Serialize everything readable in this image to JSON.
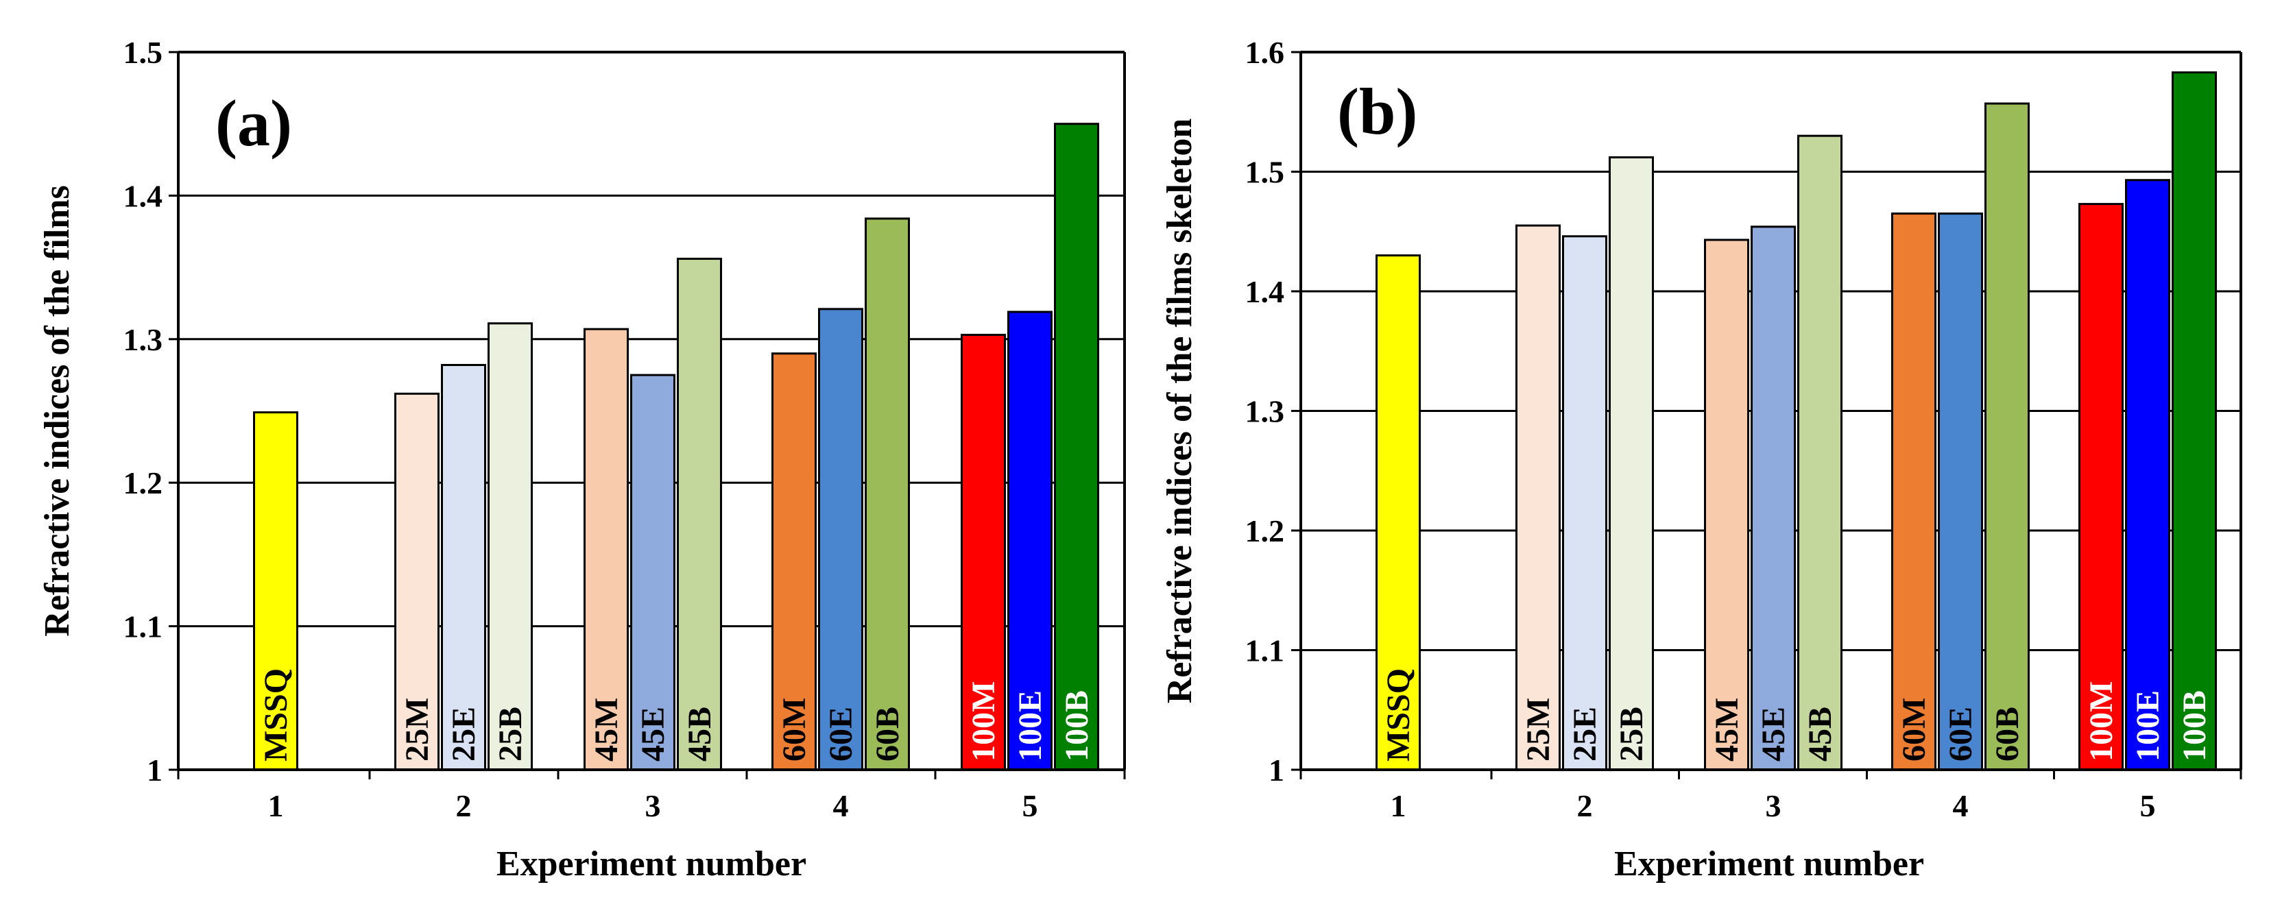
{
  "chart_data": [
    {
      "type": "bar",
      "panel_label": "(a)",
      "xlabel": "Experiment number",
      "ylabel": "Refractive indices of the films",
      "ylim": [
        1,
        1.5
      ],
      "yticks": [
        "1",
        "1.1",
        "1.2",
        "1.3",
        "1.4",
        "1.5"
      ],
      "ytick_values": [
        1,
        1.1,
        1.2,
        1.3,
        1.4,
        1.5
      ],
      "categories": [
        "1",
        "2",
        "3",
        "4",
        "5"
      ],
      "grid": true,
      "bars": [
        {
          "group": 1,
          "label": "MSSQ",
          "value": 1.249,
          "color": "#ffff00",
          "label_color": "#000000"
        },
        {
          "group": 2,
          "label": "25M",
          "value": 1.262,
          "color": "#fbe5d6",
          "label_color": "#000000"
        },
        {
          "group": 2,
          "label": "25E",
          "value": 1.282,
          "color": "#dae3f3",
          "label_color": "#000000"
        },
        {
          "group": 2,
          "label": "25B",
          "value": 1.311,
          "color": "#ebf1de",
          "label_color": "#000000"
        },
        {
          "group": 3,
          "label": "45M",
          "value": 1.307,
          "color": "#f8cbad",
          "label_color": "#000000"
        },
        {
          "group": 3,
          "label": "45E",
          "value": 1.275,
          "color": "#8faadc",
          "label_color": "#000000"
        },
        {
          "group": 3,
          "label": "45B",
          "value": 1.356,
          "color": "#c3d69b",
          "label_color": "#000000"
        },
        {
          "group": 4,
          "label": "60M",
          "value": 1.29,
          "color": "#ed7d31",
          "label_color": "#000000"
        },
        {
          "group": 4,
          "label": "60E",
          "value": 1.321,
          "color": "#4a86d0",
          "label_color": "#000000"
        },
        {
          "group": 4,
          "label": "60B",
          "value": 1.384,
          "color": "#9bbb59",
          "label_color": "#000000"
        },
        {
          "group": 5,
          "label": "100M",
          "value": 1.303,
          "color": "#ff0000",
          "label_color": "#ffffff"
        },
        {
          "group": 5,
          "label": "100E",
          "value": 1.319,
          "color": "#0000ff",
          "label_color": "#ffffff"
        },
        {
          "group": 5,
          "label": "100B",
          "value": 1.45,
          "color": "#008000",
          "label_color": "#ffffff"
        }
      ]
    },
    {
      "type": "bar",
      "panel_label": "(b)",
      "xlabel": "Experiment number",
      "ylabel": "Refractive indices of the films skeleton",
      "ylim": [
        1,
        1.6
      ],
      "yticks": [
        "1",
        "1.1",
        "1.2",
        "1.3",
        "1.4",
        "1.5",
        "1.6"
      ],
      "ytick_values": [
        1,
        1.1,
        1.2,
        1.3,
        1.4,
        1.5,
        1.6
      ],
      "categories": [
        "1",
        "2",
        "3",
        "4",
        "5"
      ],
      "grid": true,
      "bars": [
        {
          "group": 1,
          "label": "MSSQ",
          "value": 1.43,
          "color": "#ffff00",
          "label_color": "#000000"
        },
        {
          "group": 2,
          "label": "25M",
          "value": 1.455,
          "color": "#fbe5d6",
          "label_color": "#000000"
        },
        {
          "group": 2,
          "label": "25E",
          "value": 1.446,
          "color": "#dae3f3",
          "label_color": "#000000"
        },
        {
          "group": 2,
          "label": "25B",
          "value": 1.512,
          "color": "#ebf1de",
          "label_color": "#000000"
        },
        {
          "group": 3,
          "label": "45M",
          "value": 1.443,
          "color": "#f8cbad",
          "label_color": "#000000"
        },
        {
          "group": 3,
          "label": "45E",
          "value": 1.454,
          "color": "#8faadc",
          "label_color": "#000000"
        },
        {
          "group": 3,
          "label": "45B",
          "value": 1.53,
          "color": "#c3d69b",
          "label_color": "#000000"
        },
        {
          "group": 4,
          "label": "60M",
          "value": 1.465,
          "color": "#ed7d31",
          "label_color": "#000000"
        },
        {
          "group": 4,
          "label": "60E",
          "value": 1.465,
          "color": "#4a86d0",
          "label_color": "#000000"
        },
        {
          "group": 4,
          "label": "60B",
          "value": 1.557,
          "color": "#9bbb59",
          "label_color": "#000000"
        },
        {
          "group": 5,
          "label": "100M",
          "value": 1.473,
          "color": "#ff0000",
          "label_color": "#ffffff"
        },
        {
          "group": 5,
          "label": "100E",
          "value": 1.493,
          "color": "#0000ff",
          "label_color": "#ffffff"
        },
        {
          "group": 5,
          "label": "100B",
          "value": 1.583,
          "color": "#008000",
          "label_color": "#ffffff"
        }
      ]
    }
  ]
}
